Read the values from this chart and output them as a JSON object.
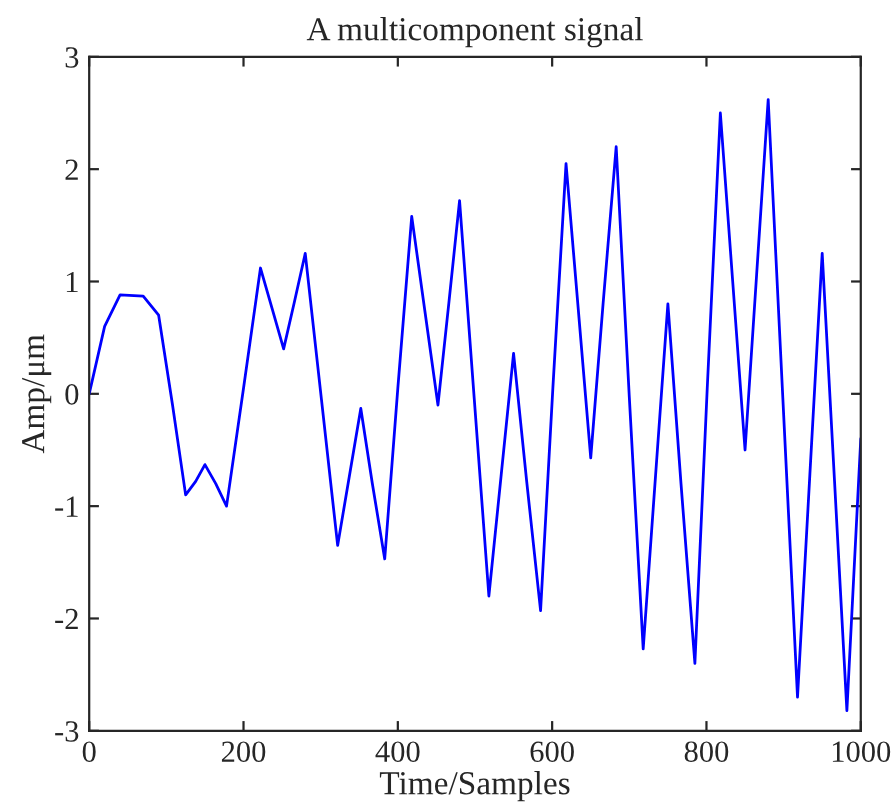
{
  "chart_data": {
    "type": "line",
    "title": "A multicomponent signal",
    "xlabel": "Time/Samples",
    "ylabel": "Amp/μm",
    "x": [
      0,
      20,
      40,
      70,
      90,
      108,
      125,
      138,
      150,
      164,
      178,
      200,
      222,
      237,
      252,
      266,
      280,
      301,
      322,
      337,
      352,
      367,
      383,
      400,
      418,
      435,
      452,
      466,
      480,
      499,
      518,
      534,
      550,
      567,
      585,
      601,
      618,
      634,
      650,
      666,
      683,
      700,
      718,
      734,
      750,
      767,
      785,
      801,
      818,
      834,
      850,
      865,
      880,
      899,
      918,
      934,
      950,
      966,
      982,
      1000
    ],
    "series": [
      {
        "color": "#0000ff",
        "values": [
          0,
          0.6,
          0.88,
          0.87,
          0.7,
          -0.1,
          -0.9,
          -0.78,
          -0.63,
          -0.8,
          -1.0,
          0.05,
          1.12,
          0.76,
          0.4,
          0.82,
          1.25,
          -0.05,
          -1.35,
          -0.74,
          -0.13,
          -0.8,
          -1.47,
          0.05,
          1.58,
          0.74,
          -0.1,
          0.8,
          1.72,
          -0.04,
          -1.8,
          -0.72,
          0.36,
          -0.78,
          -1.93,
          0.06,
          2.05,
          0.74,
          -0.57,
          0.8,
          2.2,
          -0.03,
          -2.27,
          -0.73,
          0.8,
          -0.8,
          -2.4,
          0.05,
          2.5,
          1.0,
          -0.5,
          1.06,
          2.62,
          -0.04,
          -2.7,
          -0.72,
          1.25,
          -0.78,
          -2.82,
          -0.4
        ]
      }
    ],
    "xlim": [
      0,
      1000
    ],
    "ylim": [
      -3,
      3
    ],
    "xticks": [
      0,
      200,
      400,
      600,
      800,
      1000
    ],
    "yticks": [
      -3,
      -2,
      -1,
      0,
      1,
      2,
      3
    ],
    "grid": false,
    "legend": false,
    "marker": "none",
    "line_style": "solid"
  }
}
